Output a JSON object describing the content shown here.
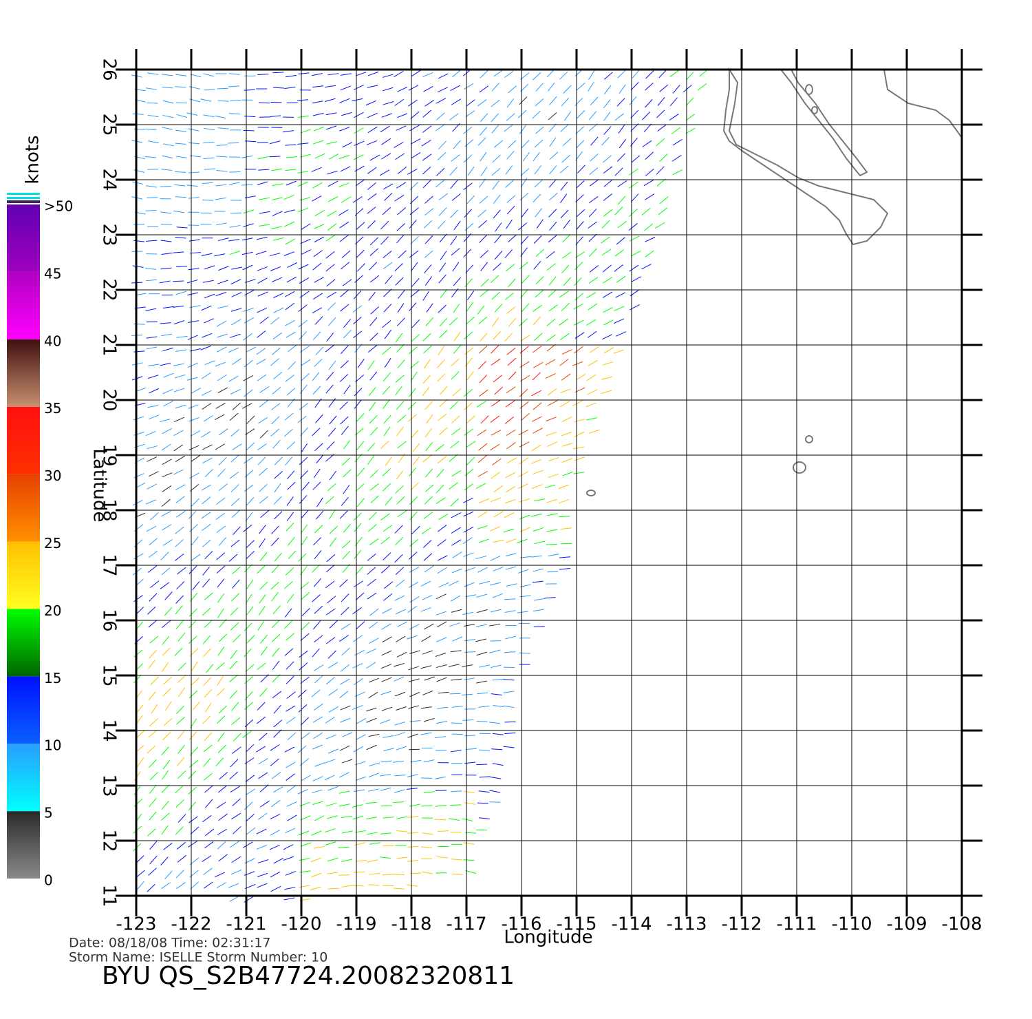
{
  "chart_data": {
    "type": "wind-map",
    "x_label": "Longitude",
    "y_label": "Latitude",
    "xlim": [
      -123,
      -108
    ],
    "ylim": [
      11,
      26
    ],
    "xticks": [
      -123,
      -122,
      -121,
      -120,
      -119,
      -118,
      -117,
      -116,
      -115,
      -114,
      -113,
      -112,
      -111,
      -110,
      -109,
      -108
    ],
    "yticks": [
      11,
      12,
      13,
      14,
      15,
      16,
      17,
      18,
      19,
      20,
      21,
      22,
      23,
      24,
      25,
      26
    ],
    "grid": true,
    "colorbar": {
      "title": "knots",
      "ticks": [
        0,
        5,
        10,
        15,
        20,
        25,
        30,
        35,
        40,
        45,
        {
          "value": 50,
          "label": ">50"
        }
      ],
      "colors": [
        [
          "#8a8a8a",
          "#2a2a2a"
        ],
        [
          "#00ffff",
          "#2a9cff"
        ],
        [
          "#0a60ff",
          "#0010ff"
        ],
        [
          "#006400",
          "#00ff00"
        ],
        [
          "#ffff20",
          "#ffc000"
        ],
        [
          "#ff9000",
          "#e84000"
        ],
        [
          "#ff3000",
          "#ff1010"
        ],
        [
          "#c89070",
          "#401010"
        ],
        [
          "#ff00ff",
          "#b000c0"
        ],
        [
          "#a000c0",
          "#6000b0"
        ]
      ]
    },
    "footer": {
      "line1": "Date: 08/18/08   Time: 02:31:17",
      "line2": "Storm  Name: ISELLE   Storm  Number: 10",
      "id": "BYU  QS_S2B47724.20082320811"
    }
  }
}
